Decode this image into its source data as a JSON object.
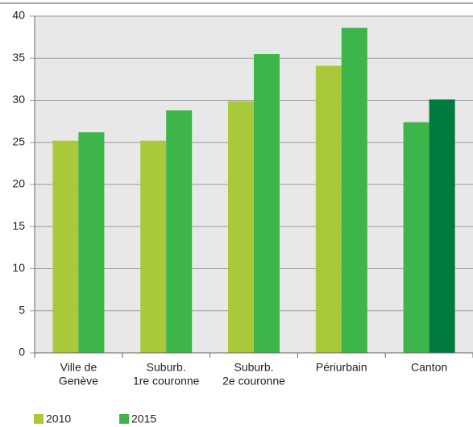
{
  "chart_data": {
    "type": "bar",
    "categories": [
      [
        "Ville de",
        "Genève"
      ],
      [
        "Suburb.",
        "1re couronne"
      ],
      [
        "Suburb.",
        "2e couronne"
      ],
      [
        "Périurbain"
      ],
      [
        "Canton"
      ]
    ],
    "series": [
      {
        "name": "2010",
        "color": "#a9c93b",
        "colors": [
          "#a9c93b",
          "#a9c93b",
          "#a9c93b",
          "#a9c93b",
          "#3db54b"
        ],
        "values": [
          25.2,
          25.2,
          29.9,
          34.1,
          27.4
        ]
      },
      {
        "name": "2015",
        "color": "#3db54b",
        "colors": [
          "#3db54b",
          "#3db54b",
          "#3db54b",
          "#3db54b",
          "#007a3d"
        ],
        "values": [
          26.2,
          28.8,
          35.5,
          38.6,
          30.1
        ]
      }
    ],
    "ylim": [
      0,
      40
    ],
    "yticks": [
      0,
      5,
      10,
      15,
      20,
      25,
      30,
      35,
      40
    ],
    "grid": true
  }
}
